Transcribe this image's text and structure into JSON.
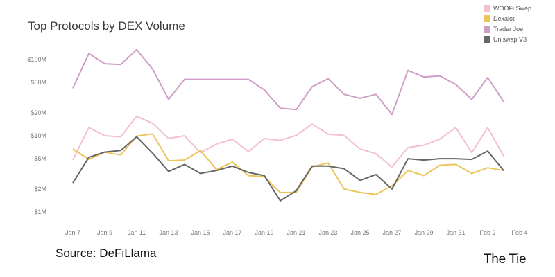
{
  "chart_data": {
    "type": "line",
    "title": "Top Protocols by DEX Volume",
    "xlabel": "",
    "ylabel": "",
    "y_scale": "log",
    "ylim": [
      800000,
      200000000
    ],
    "y_ticks": [
      {
        "value": 1000000,
        "label": "$1M"
      },
      {
        "value": 2000000,
        "label": "$2M"
      },
      {
        "value": 5000000,
        "label": "$5M"
      },
      {
        "value": 10000000,
        "label": "$10M"
      },
      {
        "value": 20000000,
        "label": "$20M"
      },
      {
        "value": 50000000,
        "label": "$50M"
      },
      {
        "value": 100000000,
        "label": "$100M"
      }
    ],
    "x_ticks": [
      "Jan 7",
      "Jan 9",
      "Jan 11",
      "Jan 13",
      "Jan 15",
      "Jan 17",
      "Jan 19",
      "Jan 21",
      "Jan 23",
      "Jan 25",
      "Jan 27",
      "Jan 29",
      "Jan 31",
      "Feb 2",
      "Feb 4"
    ],
    "x": [
      "Jan 7",
      "Jan 8",
      "Jan 9",
      "Jan 10",
      "Jan 11",
      "Jan 12",
      "Jan 13",
      "Jan 14",
      "Jan 15",
      "Jan 16",
      "Jan 17",
      "Jan 18",
      "Jan 19",
      "Jan 20",
      "Jan 21",
      "Jan 22",
      "Jan 23",
      "Jan 24",
      "Jan 25",
      "Jan 26",
      "Jan 27",
      "Jan 28",
      "Jan 29",
      "Jan 30",
      "Jan 31",
      "Feb 1",
      "Feb 2",
      "Feb 3"
    ],
    "grid": false,
    "legend_position": "top-right",
    "series": [
      {
        "name": "WOOFi Swap",
        "color": "#f4bfd0",
        "values": [
          4800000,
          12800000,
          10000000,
          9700000,
          18000000,
          14500000,
          9200000,
          10000000,
          6000000,
          7800000,
          9000000,
          6200000,
          9200000,
          8700000,
          10100000,
          14200000,
          10500000,
          10100000,
          6700000,
          5800000,
          3900000,
          7000000,
          7500000,
          9000000,
          12800000,
          6000000,
          12800000,
          5400000
        ]
      },
      {
        "name": "Dexalot",
        "color": "#ecc55a",
        "values": [
          6700000,
          4900000,
          6100000,
          5600000,
          9900000,
          10600000,
          4700000,
          4800000,
          6400000,
          3600000,
          4500000,
          3000000,
          2900000,
          1800000,
          1800000,
          3900000,
          4400000,
          2000000,
          1800000,
          1700000,
          2200000,
          3500000,
          3000000,
          4100000,
          4200000,
          3200000,
          3800000,
          3500000
        ]
      },
      {
        "name": "Trader Joe",
        "color": "#cf9ec7",
        "values": [
          42000000,
          120000000,
          88000000,
          86000000,
          135000000,
          75000000,
          30000000,
          55000000,
          55000000,
          55000000,
          55000000,
          55000000,
          40000000,
          23000000,
          22000000,
          44000000,
          56000000,
          35000000,
          31000000,
          35000000,
          19000000,
          72000000,
          59000000,
          61000000,
          47000000,
          30000000,
          58000000,
          28000000
        ]
      },
      {
        "name": "Uniswap V3",
        "color": "#666666",
        "values": [
          2400000,
          5200000,
          6100000,
          6400000,
          9700000,
          5900000,
          3400000,
          4200000,
          3200000,
          3500000,
          4000000,
          3300000,
          3000000,
          1400000,
          1900000,
          4000000,
          4000000,
          3700000,
          2600000,
          3100000,
          2000000,
          5000000,
          4800000,
          5000000,
          5000000,
          4900000,
          6300000,
          3500000
        ]
      }
    ]
  },
  "source": "Source: DeFiLlama",
  "brand": "The Tie"
}
